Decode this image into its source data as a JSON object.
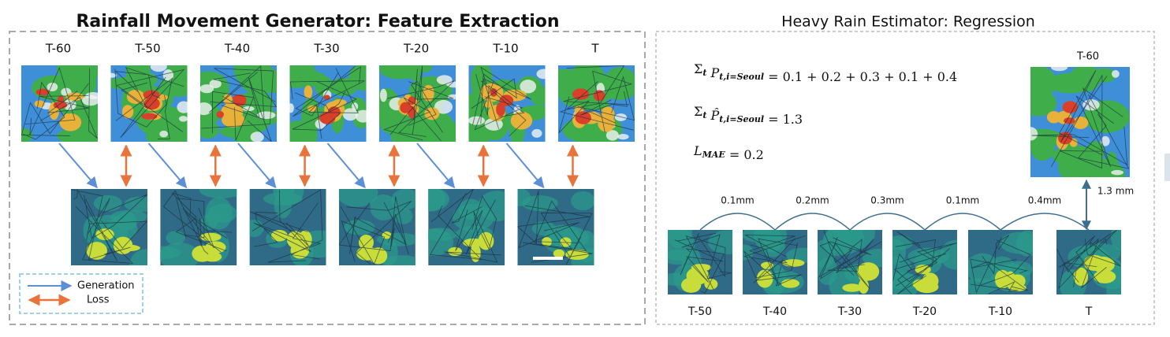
{
  "generator": {
    "title": "Rainfall Movement Generator: Feature Extraction",
    "frames": [
      "T-60",
      "T-50",
      "T-40",
      "T-30",
      "T-20",
      "T-10",
      "T"
    ],
    "legend": {
      "generation": "Generation",
      "loss": "Loss"
    }
  },
  "estimator": {
    "title": "Heavy Rain Estimator:  Regression",
    "equations": [
      [
        {
          "text": "Σ",
          "sub": "t"
        },
        {
          "text": " P",
          "sub": "t,i=Seoul"
        },
        {
          "text": " = 0.1 + 0.2 + 0.3 + 0.1 + 0.4"
        }
      ],
      [
        {
          "text": "Σ",
          "sub": "t"
        },
        {
          "text": " P̂",
          "sub": "t,i=Seoul"
        },
        {
          "text": " = 1.3"
        }
      ],
      [
        {
          "text": "L",
          "sub": "MAE"
        },
        {
          "text": " =  0.2"
        }
      ]
    ],
    "input_label": "T-60",
    "total_label": "1.3 mm",
    "step_labels": [
      "0.1mm",
      "0.2mm",
      "0.3mm",
      "0.1mm",
      "0.4mm"
    ],
    "frames": [
      "T-50",
      "T-40",
      "T-30",
      "T-20",
      "T-10",
      "T"
    ]
  }
}
